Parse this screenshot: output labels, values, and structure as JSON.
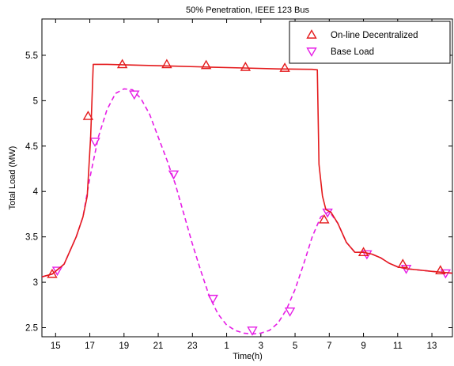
{
  "chart_data": {
    "type": "line",
    "title": "50% Penetration, IEEE 123 Bus",
    "xlabel": "Time(h)",
    "ylabel": "Total Load (MW)",
    "x_tick_labels": [
      "15",
      "17",
      "19",
      "21",
      "23",
      "1",
      "3",
      "5",
      "7",
      "9",
      "11",
      "13"
    ],
    "x_tick_positions": [
      15,
      17,
      19,
      21,
      23,
      25,
      27,
      29,
      31,
      33,
      35,
      37
    ],
    "xlim": [
      14.2,
      38.2
    ],
    "ylim": [
      2.4,
      5.9
    ],
    "y_ticks": [
      2.5,
      3,
      3.5,
      4,
      4.5,
      5,
      5.5
    ],
    "y_tick_labels": [
      "2.5",
      "3",
      "3.5",
      "4",
      "4.5",
      "5",
      "5.5"
    ],
    "grid": false,
    "legend_position": "top-right",
    "series": [
      {
        "name": "On-line Decentralized",
        "color": "#e41a1c",
        "line_style": "solid",
        "marker": "triangle-up",
        "x": [
          14.2,
          14.8,
          15.5,
          16.2,
          16.6,
          16.85,
          17.05,
          17.2,
          18,
          20,
          22,
          24,
          26,
          28,
          30,
          30.3,
          30.4,
          30.6,
          30.8,
          31.1,
          31.5,
          32,
          32.5,
          33,
          33.5,
          34,
          34.5,
          35,
          35.5,
          36,
          37,
          38.2
        ],
        "values": [
          3.06,
          3.09,
          3.2,
          3.5,
          3.72,
          3.95,
          4.6,
          5.4,
          5.4,
          5.39,
          5.38,
          5.37,
          5.36,
          5.35,
          5.345,
          5.34,
          4.3,
          3.95,
          3.8,
          3.77,
          3.65,
          3.44,
          3.33,
          3.33,
          3.31,
          3.27,
          3.21,
          3.17,
          3.15,
          3.14,
          3.12,
          3.1
        ],
        "marker_x": [
          14.8,
          16.9,
          18.9,
          21.5,
          23.8,
          26.1,
          28.4,
          30.7,
          33.0,
          35.3,
          37.5
        ],
        "marker_values": [
          3.09,
          4.83,
          5.4,
          5.4,
          5.39,
          5.37,
          5.36,
          3.69,
          3.33,
          3.2,
          3.13
        ]
      },
      {
        "name": "Base Load",
        "color": "#e61ee6",
        "line_style": "dashed",
        "marker": "triangle-down",
        "x": [
          14.2,
          14.8,
          15.5,
          16.2,
          16.6,
          17,
          17.5,
          18,
          18.5,
          19,
          19.5,
          20,
          20.5,
          21,
          21.5,
          22,
          22.5,
          23,
          23.5,
          24,
          24.5,
          25,
          25.5,
          26,
          26.5,
          27,
          27.5,
          28,
          28.5,
          29,
          29.5,
          30,
          30.5,
          31,
          31.5,
          32,
          32.5,
          33,
          33.5,
          34,
          34.5,
          35,
          35.5,
          36,
          37,
          38.2
        ],
        "values": [
          3.06,
          3.09,
          3.2,
          3.5,
          3.72,
          4.15,
          4.6,
          4.9,
          5.08,
          5.13,
          5.12,
          5.02,
          4.85,
          4.6,
          4.35,
          4.08,
          3.75,
          3.42,
          3.12,
          2.84,
          2.65,
          2.53,
          2.47,
          2.44,
          2.43,
          2.44,
          2.47,
          2.55,
          2.7,
          2.92,
          3.2,
          3.5,
          3.72,
          3.78,
          3.65,
          3.44,
          3.33,
          3.33,
          3.31,
          3.27,
          3.21,
          3.17,
          3.15,
          3.14,
          3.12,
          3.1
        ],
        "marker_x": [
          15.1,
          17.3,
          19.6,
          21.9,
          24.2,
          26.5,
          28.7,
          30.9,
          33.2,
          35.5,
          37.8
        ],
        "marker_values": [
          3.13,
          4.55,
          5.07,
          4.19,
          2.82,
          2.47,
          2.68,
          3.77,
          3.31,
          3.15,
          3.1
        ]
      }
    ]
  }
}
